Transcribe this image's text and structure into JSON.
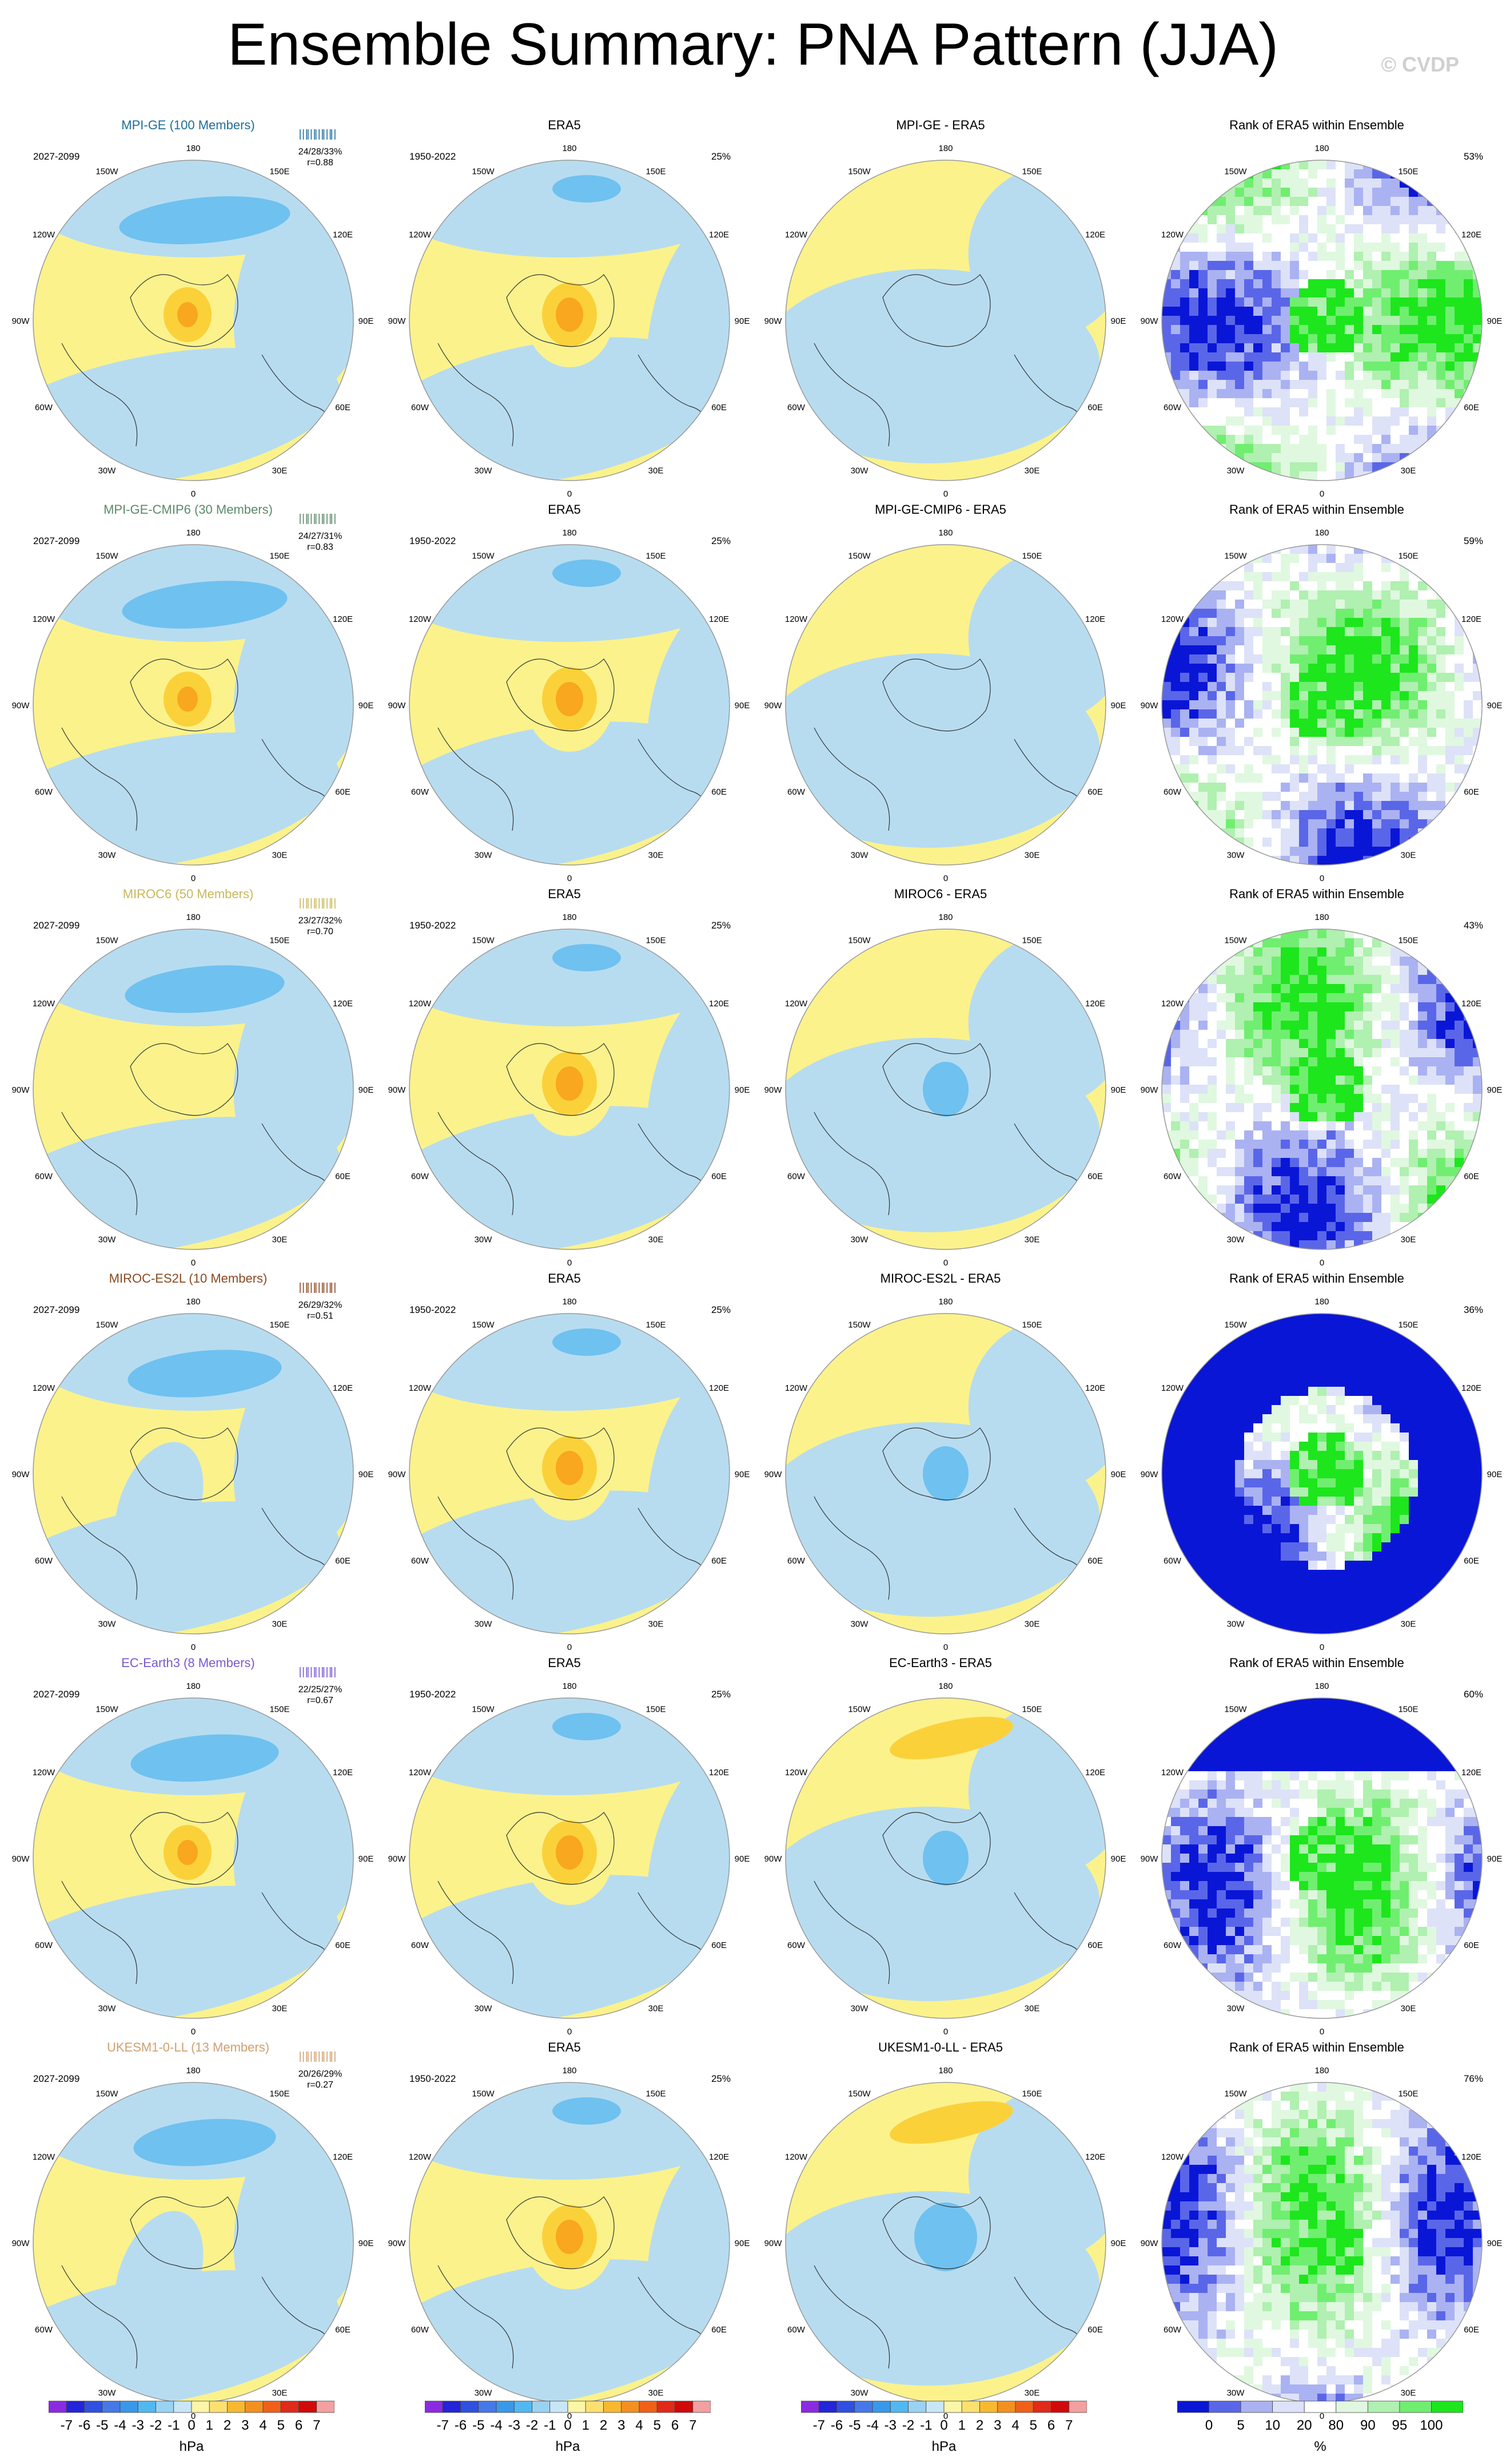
{
  "title": "Ensemble Summary: PNA Pattern (JJA)",
  "watermark": "© CVDP",
  "colors": {
    "pos1": "#fbf28c",
    "pos2": "#fbd13a",
    "pos3": "#f8a71f",
    "pos4": "#f37f1c",
    "neg1": "#b7dcf0",
    "neg2": "#6fc1f0",
    "neg3": "#3da1e8",
    "neg4": "#1e71d8",
    "rank_lo": "#0a16d6",
    "rank_lo2": "#5a66e8",
    "rank_lo3": "#aab2f2",
    "rank_lo4": "#dde2f8",
    "rank_mid": "#ffffff",
    "rank_hi1": "#e0f8e0",
    "rank_hi2": "#b0f0b0",
    "rank_hi3": "#70ee70",
    "rank_hi4": "#1de61d",
    "ocean_outline": "#333333"
  },
  "lon_labels": [
    "180",
    "150E",
    "120E",
    "90E",
    "60E",
    "30E",
    "0",
    "30W",
    "60W",
    "90W",
    "120W",
    "150W"
  ],
  "rows": [
    {
      "model": "MPI-GE (100 Members)",
      "model_color": "#1f6e9a",
      "period": "2027-2099",
      "stats1": "24/28/33%",
      "stats2": "r=0.88",
      "diff_title": "MPI-GE - ERA5",
      "rank_pct": "53%",
      "era5_pct": "25%",
      "pattern": 0
    },
    {
      "model": "MPI-GE-CMIP6 (30 Members)",
      "model_color": "#5a8a6a",
      "period": "2027-2099",
      "stats1": "24/27/31%",
      "stats2": "r=0.83",
      "diff_title": "MPI-GE-CMIP6 - ERA5",
      "rank_pct": "59%",
      "era5_pct": "25%",
      "pattern": 1
    },
    {
      "model": "MIROC6 (50 Members)",
      "model_color": "#c8b85a",
      "period": "2027-2099",
      "stats1": "23/27/32%",
      "stats2": "r=0.70",
      "diff_title": "MIROC6 - ERA5",
      "rank_pct": "43%",
      "era5_pct": "25%",
      "pattern": 2
    },
    {
      "model": "MIROC-ES2L (10 Members)",
      "model_color": "#8a4a22",
      "period": "2027-2099",
      "stats1": "26/29/32%",
      "stats2": "r=0.51",
      "diff_title": "MIROC-ES2L - ERA5",
      "rank_pct": "36%",
      "era5_pct": "25%",
      "pattern": 3
    },
    {
      "model": "EC-Earth3 (8 Members)",
      "model_color": "#7a5ad0",
      "period": "2027-2099",
      "stats1": "22/25/27%",
      "stats2": "r=0.67",
      "diff_title": "EC-Earth3 - ERA5",
      "rank_pct": "60%",
      "era5_pct": "25%",
      "pattern": 4
    },
    {
      "model": "UKESM1-0-LL (13 Members)",
      "model_color": "#d0a070",
      "period": "2027-2099",
      "stats1": "20/26/29%",
      "stats2": "r=0.27",
      "diff_title": "UKESM1-0-LL - ERA5",
      "rank_pct": "76%",
      "era5_pct": "25%",
      "pattern": 5
    }
  ],
  "era5": {
    "title": "ERA5",
    "period": "1950-2022"
  },
  "rank_title": "Rank of ERA5 within Ensemble",
  "colorbar_hpa": {
    "labels": [
      "-7",
      "-6",
      "-5",
      "-4",
      "-3",
      "-2",
      "-1",
      "0",
      "1",
      "2",
      "3",
      "4",
      "5",
      "6",
      "7"
    ],
    "colors": [
      "#8a2be2",
      "#2424d8",
      "#3050e0",
      "#4678e8",
      "#3a98e8",
      "#52b8f0",
      "#9ad2f2",
      "#c8e6f6",
      "#fbf6a8",
      "#fbe070",
      "#f8b830",
      "#f39020",
      "#f06018",
      "#e02a1a",
      "#d00a0a",
      "#f2a0a0"
    ],
    "unit": "hPa"
  },
  "colorbar_rank": {
    "labels": [
      "0",
      "5",
      "10",
      "20",
      "80",
      "90",
      "95",
      "100"
    ],
    "colors": [
      "#0a16d6",
      "#5a66e8",
      "#aab2f2",
      "#dde2f8",
      "#ffffff",
      "#e0f8e0",
      "#b0f0b0",
      "#70ee70",
      "#1de61d"
    ],
    "unit": "%"
  }
}
